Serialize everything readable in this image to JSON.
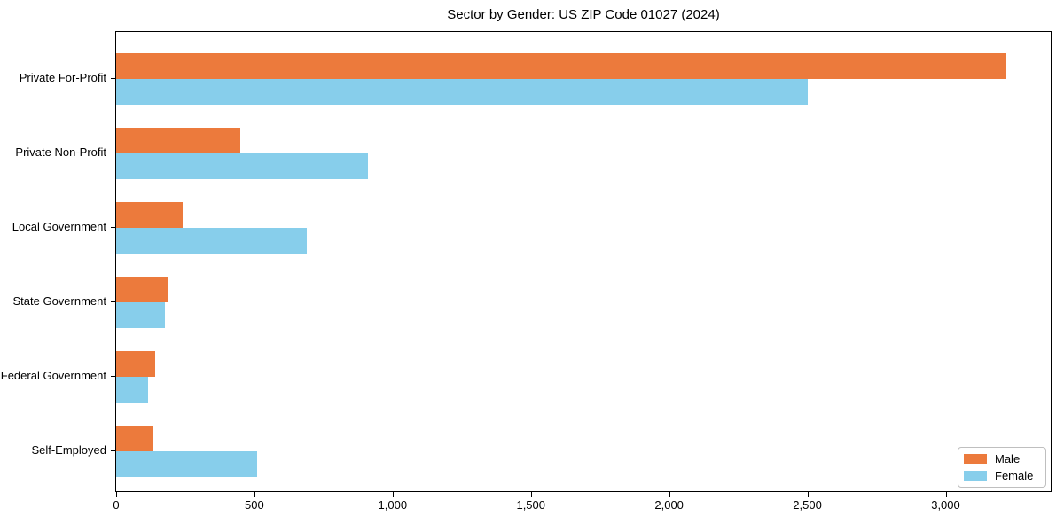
{
  "chart_data": {
    "type": "bar",
    "orientation": "horizontal",
    "title": "Sector by Gender: US ZIP Code 01027 (2024)",
    "categories": [
      "Private For-Profit",
      "Private Non-Profit",
      "Local Government",
      "State Government",
      "Federal Government",
      "Self-Employed"
    ],
    "series": [
      {
        "name": "Male",
        "color": "#ec7a3c",
        "values": [
          3220,
          450,
          240,
          190,
          140,
          130
        ]
      },
      {
        "name": "Female",
        "color": "#87ceeb",
        "values": [
          2500,
          910,
          690,
          175,
          115,
          510
        ]
      }
    ],
    "xlabel": "",
    "ylabel": "",
    "xlim": [
      0,
      3380
    ],
    "xticks": [
      0,
      500,
      1000,
      1500,
      2000,
      2500,
      3000
    ],
    "xtick_labels": [
      "0",
      "500",
      "1,000",
      "1,500",
      "2,000",
      "2,500",
      "3,000"
    ],
    "grid": false,
    "legend": {
      "position": "lower right",
      "entries": [
        "Male",
        "Female"
      ]
    },
    "colors": {
      "axis": "#000000",
      "background": "#ffffff",
      "legend_border": "#bfbfbf"
    }
  }
}
